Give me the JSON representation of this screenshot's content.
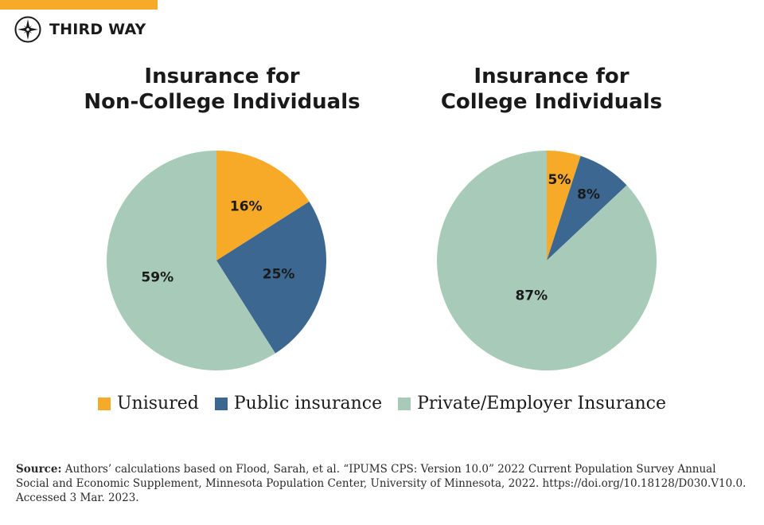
{
  "brand": {
    "name": "THIRD WAY"
  },
  "colors": {
    "orange": "#f7a928",
    "blue": "#3b6790",
    "green": "#a8cbb9",
    "ink": "#1a1a1a"
  },
  "chart_data": [
    {
      "type": "pie",
      "title_lines": [
        "Insurance for",
        "Non-College Individuals"
      ],
      "categories": [
        "Unisured",
        "Public insurance",
        "Private/Employer Insurance"
      ],
      "values": [
        16,
        25,
        59
      ],
      "labels": [
        "16%",
        "25%",
        "59%"
      ]
    },
    {
      "type": "pie",
      "title_lines": [
        "Insurance for",
        "College Individuals"
      ],
      "categories": [
        "Unisured",
        "Public insurance",
        "Private/Employer Insurance"
      ],
      "values": [
        5,
        8,
        87
      ],
      "labels": [
        "5%",
        "8%",
        "87%"
      ]
    }
  ],
  "legend": [
    {
      "label": "Unisured",
      "color": "#f7a928"
    },
    {
      "label": "Public insurance",
      "color": "#3b6790"
    },
    {
      "label": "Private/Employer Insurance",
      "color": "#a8cbb9"
    }
  ],
  "source": {
    "label": "Source:",
    "text": "Authors’ calculations based on Flood, Sarah, et al. “IPUMS CPS: Version 10.0” 2022 Current Population Survey Annual Social and Economic Supplement, Minnesota Population Center, University of Minnesota, 2022. https://doi.org/10.18128/D030.V10.0. Accessed 3 Mar. 2023."
  }
}
